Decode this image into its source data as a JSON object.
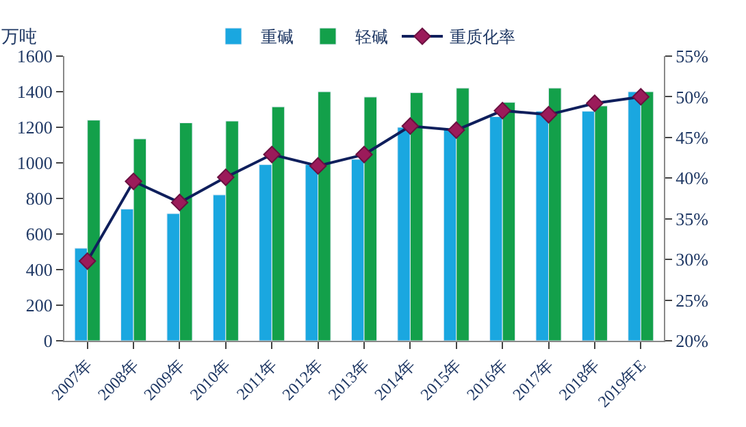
{
  "chart_data": {
    "type": "bar",
    "ylabel": "万吨",
    "categories": [
      "2007年",
      "2008年",
      "2009年",
      "2010年",
      "2011年",
      "2012年",
      "2013年",
      "2014年",
      "2015年",
      "2016年",
      "2017年",
      "2018年",
      "2019年E"
    ],
    "series": [
      {
        "name": "重碱",
        "color": "#1aa7e0",
        "values": [
          520,
          740,
          715,
          820,
          990,
          990,
          1020,
          1200,
          1190,
          1260,
          1290,
          1290,
          1400
        ]
      },
      {
        "name": "轻碱",
        "color": "#13a04a",
        "values": [
          1240,
          1135,
          1225,
          1235,
          1315,
          1400,
          1370,
          1395,
          1420,
          1340,
          1420,
          1320,
          1400
        ]
      },
      {
        "name": "重质化率",
        "type": "line",
        "axis": "y2",
        "color": "#0f1f5c",
        "values": [
          29.8,
          39.6,
          37.0,
          40.1,
          42.9,
          41.5,
          42.9,
          46.4,
          45.9,
          48.3,
          47.8,
          49.2,
          50.0
        ]
      }
    ],
    "ylim": [
      0,
      1600
    ],
    "yticks": [
      0,
      200,
      400,
      600,
      800,
      1000,
      1200,
      1400,
      1600
    ],
    "y2lim": [
      20,
      55
    ],
    "y2ticks": [
      {
        "value": 20,
        "label": "20%"
      },
      {
        "value": 25,
        "label": "25%"
      },
      {
        "value": 30,
        "label": "30%"
      },
      {
        "value": 35,
        "label": "35%"
      },
      {
        "value": 40,
        "label": "40%"
      },
      {
        "value": 45,
        "label": "45%"
      },
      {
        "value": 50,
        "label": "50%"
      },
      {
        "value": 55,
        "label": "55%"
      }
    ],
    "marker": "diamond",
    "legend": "top"
  }
}
